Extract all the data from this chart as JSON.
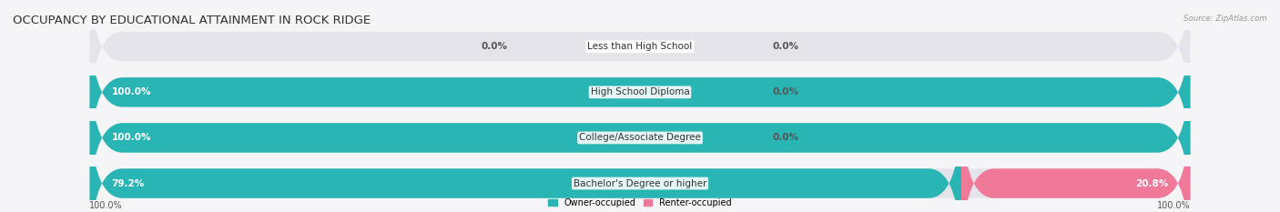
{
  "title": "OCCUPANCY BY EDUCATIONAL ATTAINMENT IN ROCK RIDGE",
  "source": "Source: ZipAtlas.com",
  "categories": [
    "Less than High School",
    "High School Diploma",
    "College/Associate Degree",
    "Bachelor's Degree or higher"
  ],
  "owner_values": [
    0.0,
    100.0,
    100.0,
    79.2
  ],
  "renter_values": [
    0.0,
    0.0,
    0.0,
    20.8
  ],
  "owner_color": "#2ab5b5",
  "renter_color": "#f07898",
  "bar_bg_color": "#e4e4ea",
  "owner_label": "Owner-occupied",
  "renter_label": "Renter-occupied",
  "title_fontsize": 9.5,
  "label_fontsize": 7.5,
  "tick_fontsize": 7,
  "figsize": [
    14.06,
    2.33
  ],
  "dpi": 100,
  "bg_color": "#f5f5f8"
}
